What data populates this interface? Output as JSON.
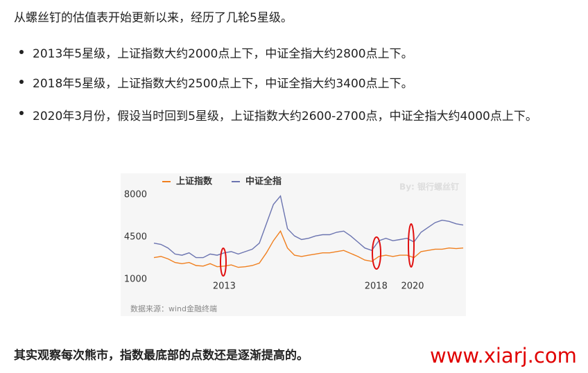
{
  "intro": "从螺丝钉的估值表开始更新以来，经历了几轮5星级。",
  "bullets": [
    "2013年5星级，上证指数大约2000点上下，中证全指大约2800点上下。",
    "2018年5星级，上证指数大约2500点上下，中证全指大约3400点上下。",
    "2020年3月份，假设当时回到5星级，上证指数大约2600-2700点，中证全指大约4000点上下。"
  ],
  "chart_data": {
    "type": "line",
    "watermark": "By: 银行螺丝钉",
    "source": "数据来源：wind金融终端",
    "x": [
      2011,
      2011.25,
      2011.5,
      2011.75,
      2012,
      2012.25,
      2012.5,
      2012.75,
      2013,
      2013.25,
      2013.5,
      2013.75,
      2014,
      2014.25,
      2014.5,
      2014.75,
      2015,
      2015.25,
      2015.5,
      2015.75,
      2016,
      2016.25,
      2016.5,
      2016.75,
      2017,
      2017.25,
      2017.5,
      2017.75,
      2018,
      2018.25,
      2018.5,
      2018.75,
      2019,
      2019.25,
      2019.5,
      2019.75,
      2020,
      2020.25,
      2020.5,
      2020.75,
      2021,
      2021.25,
      2021.5,
      2021.75,
      2022
    ],
    "series": [
      {
        "name": "上证指数",
        "color": "#f07f1e",
        "values": [
          2800,
          2900,
          2700,
          2400,
          2300,
          2400,
          2150,
          2100,
          2300,
          2050,
          2100,
          2200,
          2000,
          2050,
          2150,
          2350,
          3200,
          4200,
          5000,
          3600,
          3000,
          2900,
          3000,
          3100,
          3200,
          3200,
          3300,
          3400,
          3150,
          2900,
          2600,
          2500,
          2900,
          3000,
          2900,
          3000,
          3000,
          2800,
          3300,
          3400,
          3500,
          3500,
          3600,
          3550,
          3600
        ]
      },
      {
        "name": "中证全指",
        "color": "#6b74b0",
        "values": [
          4000,
          3900,
          3600,
          3100,
          3000,
          3200,
          2800,
          2800,
          3100,
          3000,
          3200,
          3300,
          3100,
          3300,
          3500,
          4000,
          5600,
          7200,
          7900,
          5200,
          4600,
          4300,
          4400,
          4600,
          4700,
          4700,
          4900,
          5000,
          4600,
          4100,
          3600,
          3400,
          4200,
          4400,
          4200,
          4300,
          4400,
          4100,
          4900,
          5300,
          5700,
          5900,
          5800,
          5600,
          5500
        ]
      }
    ],
    "xlim": [
      2011,
      2022
    ],
    "xticks": [
      {
        "value": 2013.5,
        "label": "2013"
      },
      {
        "value": 2018.9,
        "label": "2018"
      },
      {
        "value": 2020.2,
        "label": "2020"
      }
    ],
    "ylim": [
      1000,
      8000
    ],
    "yticks": [
      1000,
      4500,
      8000
    ],
    "grid": false
  },
  "conclusion": "其实观察每次熊市，指数最底部的点数还是逐渐提高的。",
  "site_watermark": "www.xiarj.com"
}
